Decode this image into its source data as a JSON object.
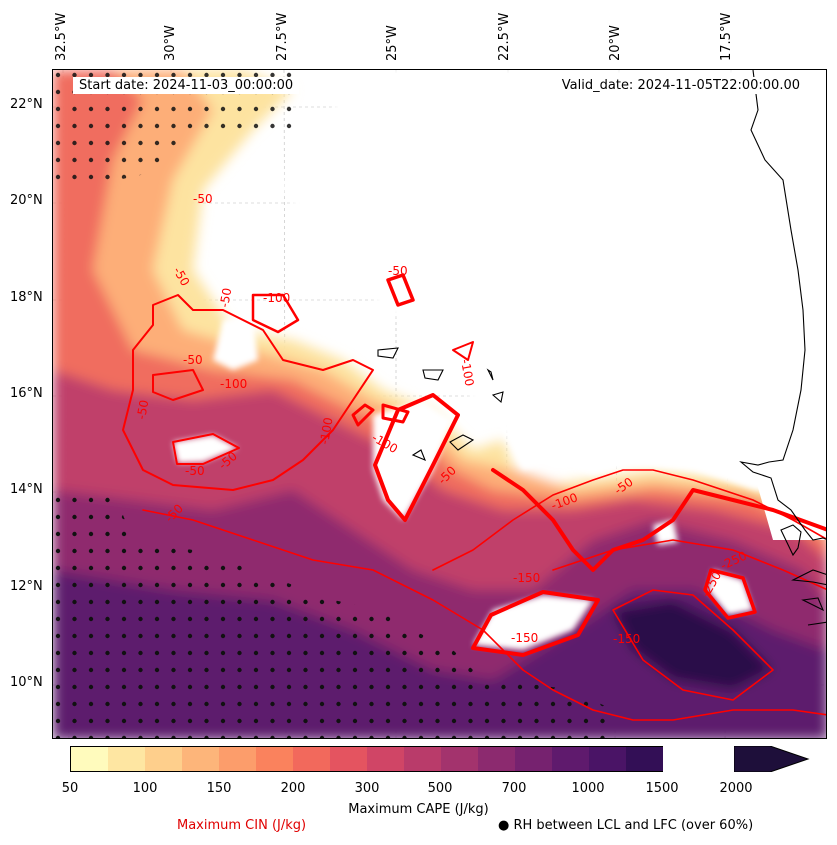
{
  "map": {
    "start_date": "Start date: 2024-11-03_00:00:00",
    "valid_date": "Valid_date: 2024-11-05T22:00:00.00",
    "lon_labels": [
      "32.5°W",
      "30°W",
      "27.5°W",
      "25°W",
      "22.5°W",
      "20°W",
      "17.5°W"
    ],
    "lat_labels": [
      "22°N",
      "20°N",
      "18°N",
      "16°N",
      "14°N",
      "12°N",
      "10°N"
    ],
    "contour_labels": [
      "-50",
      "-50",
      "-100",
      "-50",
      "-50",
      "-100",
      "-50",
      "-50",
      "-50",
      "-50",
      "-100",
      "-50",
      "-100",
      "-50",
      "-150",
      "-150",
      "-150",
      "-100",
      "-50",
      "-250",
      "-250",
      "-100"
    ]
  },
  "colorbar": {
    "title": "Maximum CAPE (J/kg)",
    "ticks": [
      "50",
      "100",
      "150",
      "200",
      "300",
      "500",
      "700",
      "1000",
      "1500",
      "2000"
    ],
    "colors": [
      "#fffbbd",
      "#fee6a2",
      "#fecf8c",
      "#fdb57a",
      "#fc9d6b",
      "#fa825d",
      "#f2695c",
      "#e45460",
      "#d04566",
      "#b93b6a",
      "#a3336d",
      "#8c2a6f",
      "#76226f",
      "#5f1a6d",
      "#4a1466",
      "#330f56",
      "#1e0f3a"
    ]
  },
  "legend": {
    "cin_label": "Maximum CIN (J/kg)",
    "rh_label": "● RH between LCL and LFC (over 60%)"
  }
}
